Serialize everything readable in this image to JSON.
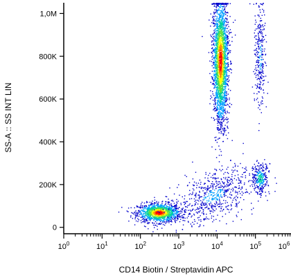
{
  "chart_data": {
    "type": "scatter",
    "title": "",
    "xlabel": "CD14 Biotin / Streptavidin APC",
    "ylabel": "SS-A :: SS INT LIN",
    "x_scale": "log",
    "xlim": [
      1,
      1000000
    ],
    "x_ticks": [
      {
        "value": 1,
        "base": "10",
        "exp": "0"
      },
      {
        "value": 10,
        "base": "10",
        "exp": "1"
      },
      {
        "value": 100,
        "base": "10",
        "exp": "2"
      },
      {
        "value": 1000,
        "base": "10",
        "exp": "3"
      },
      {
        "value": 10000,
        "base": "10",
        "exp": "4"
      },
      {
        "value": 100000,
        "base": "10",
        "exp": "5"
      },
      {
        "value": 1000000,
        "base": "10",
        "exp": "6"
      }
    ],
    "y_scale": "linear",
    "ylim": [
      -30000,
      1050000
    ],
    "y_ticks": [
      {
        "value": 0,
        "label": "0"
      },
      {
        "value": 200000,
        "label": "200K"
      },
      {
        "value": 400000,
        "label": "400K"
      },
      {
        "value": 600000,
        "label": "600K"
      },
      {
        "value": 800000,
        "label": "800K"
      },
      {
        "value": 1000000,
        "label": "1,0M"
      }
    ],
    "grid": false,
    "legend": "none",
    "density_colormap": [
      "#0000cc",
      "#00a0ff",
      "#00d0a0",
      "#60e040",
      "#ffff00",
      "#ff8000",
      "#ff0000"
    ],
    "populations": [
      {
        "x_center": 300,
        "y_center": 70000,
        "count": 1300
      },
      {
        "x_center": 12000,
        "y_center": 780000,
        "count": 2600
      },
      {
        "x_center": 130000,
        "y_center": 230000,
        "count": 260
      },
      {
        "x_center": 130000,
        "y_center": 800000,
        "count": 300
      },
      {
        "x_center": 8000,
        "y_center": 150000,
        "count": 700
      }
    ]
  }
}
